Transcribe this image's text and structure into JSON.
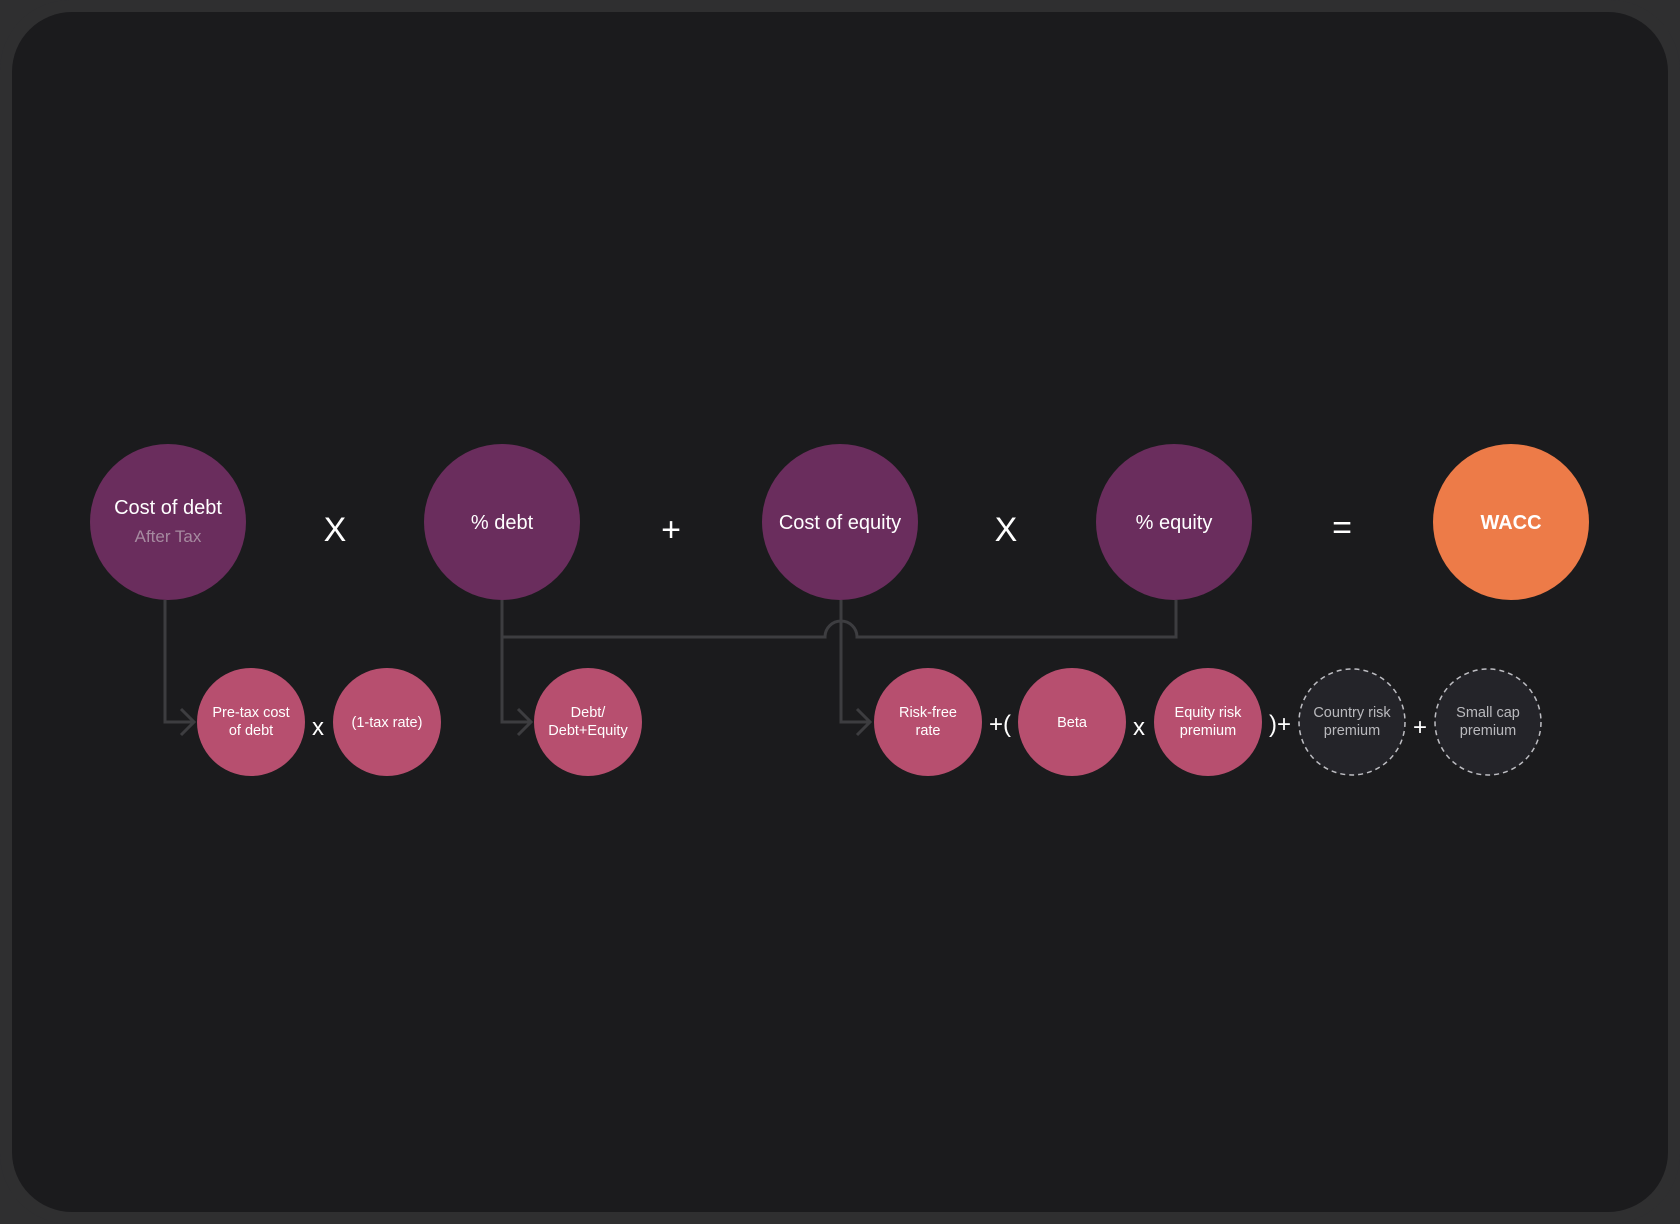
{
  "colors": {
    "primary_node": "#6a2d5d",
    "secondary_node": "#b74f6f",
    "result_node": "#ed7b48",
    "optional_node_border": "#bdbdc2",
    "background": "#1b1b1d"
  },
  "top_row": {
    "cost_of_debt": {
      "label": "Cost of debt",
      "sublabel": "After Tax"
    },
    "op1": "X",
    "pct_debt": {
      "label": "% debt"
    },
    "op2": "+",
    "cost_of_equity": {
      "label": "Cost of equity"
    },
    "op3": "X",
    "pct_equity": {
      "label": "% equity"
    },
    "op4": "=",
    "wacc": {
      "label": "WACC"
    }
  },
  "bottom_row": {
    "pretax": [
      "Pre-tax cost",
      "of debt"
    ],
    "op_a": "x",
    "tax_rate": [
      "(1-tax rate)"
    ],
    "debt_ratio": [
      "Debt/",
      "Debt+Equity"
    ],
    "risk_free": [
      "Risk-free",
      "rate"
    ],
    "op_b": "+(",
    "beta": [
      "Beta"
    ],
    "op_c": "x",
    "equity_risk": [
      "Equity risk",
      "premium"
    ],
    "op_d": ")+",
    "country_risk": [
      "Country risk",
      "premium"
    ],
    "op_e": "+",
    "small_cap": [
      "Small cap",
      "premium"
    ]
  }
}
